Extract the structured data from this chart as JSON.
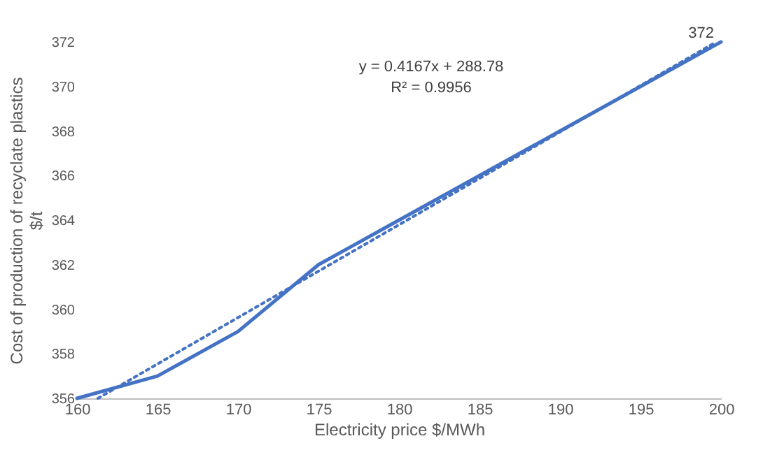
{
  "chart_data": {
    "type": "line",
    "xlabel": "Electricity price $/MWh",
    "ylabel": "Cost of production of recyclate plastics\n$/t",
    "x": [
      160,
      165,
      170,
      175,
      180,
      185,
      190,
      195,
      200
    ],
    "series": [
      {
        "color": "#4472c4",
        "values": [
          356,
          357,
          359,
          362,
          364,
          366,
          368,
          370,
          372
        ],
        "value_labels": [
          null,
          null,
          null,
          null,
          null,
          null,
          null,
          null,
          "372"
        ]
      },
      {
        "color": "#4472c4",
        "line_style": "dotted",
        "x": [
          161.3,
          199.7
        ],
        "values": [
          356,
          372
        ]
      }
    ],
    "xlim": [
      160,
      200
    ],
    "xticks": [
      160,
      165,
      170,
      175,
      180,
      185,
      190,
      195,
      200
    ],
    "ylim": [
      356,
      372
    ],
    "yticks": [
      356,
      358,
      360,
      362,
      364,
      366,
      368,
      370,
      372
    ],
    "grid": false,
    "annotations": [
      "y = 0.4167x + 288.78",
      "R² = 0.9956"
    ]
  }
}
